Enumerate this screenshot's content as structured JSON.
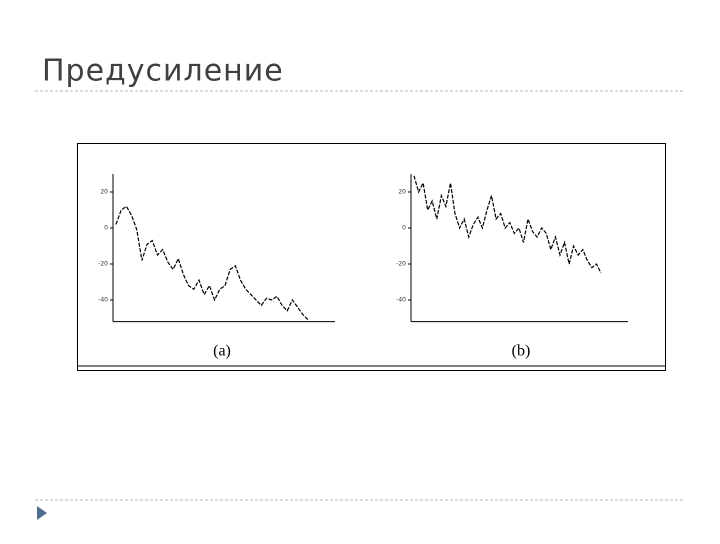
{
  "slide": {
    "title": "Предусиление",
    "captions": [
      "(a)",
      "(b)"
    ]
  },
  "chart_data": [
    {
      "type": "line",
      "color": "#000000",
      "categories": [
        null,
        null,
        null,
        null,
        null,
        null,
        null,
        null,
        null,
        null,
        null,
        null,
        null,
        null,
        null,
        null,
        null,
        null,
        null,
        null,
        null,
        null,
        null,
        null,
        null,
        null,
        null,
        null,
        null,
        null,
        null,
        null,
        null,
        null,
        null,
        null,
        null,
        null
      ],
      "values": [
        2,
        10,
        12,
        7,
        -1,
        -18,
        -9,
        -7,
        -15,
        -12,
        -19,
        -23,
        -17,
        -26,
        -32,
        -34,
        -29,
        -37,
        -32,
        -40,
        -34,
        -32,
        -23,
        -21,
        -29,
        -34,
        -37,
        -40,
        -43,
        -39,
        -40,
        -38,
        -43,
        -46,
        -40,
        -44,
        -48,
        -51
      ],
      "ylim": [
        -52,
        30
      ],
      "yticks": [
        20,
        0,
        -20,
        -40
      ]
    },
    {
      "type": "line",
      "color": "#000000",
      "categories": [
        null,
        null,
        null,
        null,
        null,
        null,
        null,
        null,
        null,
        null,
        null,
        null,
        null,
        null,
        null,
        null,
        null,
        null,
        null,
        null,
        null,
        null,
        null,
        null,
        null,
        null,
        null,
        null,
        null,
        null,
        null,
        null,
        null,
        null,
        null,
        null,
        null,
        null,
        null,
        null,
        null,
        null
      ],
      "values": [
        29,
        20,
        25,
        10,
        15,
        5,
        18,
        12,
        25,
        8,
        0,
        5,
        -5,
        2,
        6,
        0,
        10,
        18,
        5,
        8,
        0,
        3,
        -3,
        0,
        -8,
        5,
        -2,
        -5,
        0,
        -3,
        -12,
        -5,
        -15,
        -8,
        -20,
        -10,
        -15,
        -12,
        -18,
        -22,
        -20,
        -25
      ],
      "ylim": [
        -52,
        30
      ],
      "yticks": [
        20,
        0,
        -20,
        -40
      ]
    }
  ]
}
